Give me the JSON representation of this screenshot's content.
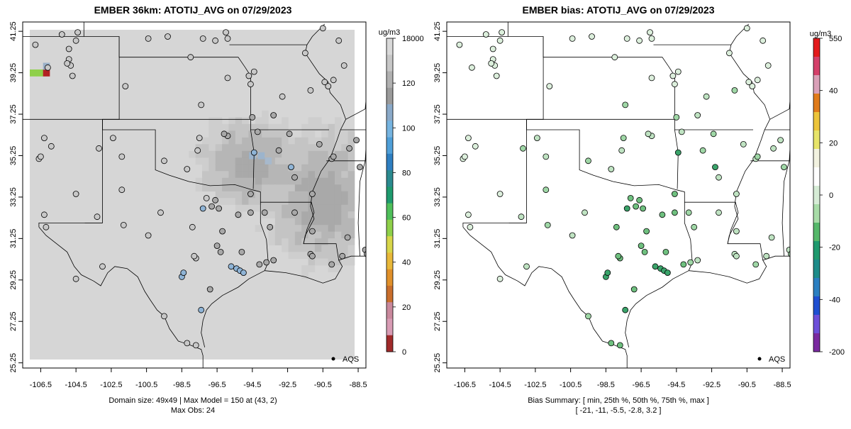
{
  "left": {
    "title": "EMBER 36km: ATOTIJ_AVG on 07/29/2023",
    "footer_line1": "Domain size: 49x49 | Max Model = 150 at (43, 2)",
    "footer_line2": "Max Obs: 24",
    "legend_aqs": "AQS",
    "colorbar_unit": "ug/m3",
    "colorbar_labels": [
      "18000",
      "120",
      "100",
      "80",
      "60",
      "40",
      "20",
      "0"
    ],
    "colorbar_colors": [
      "#d9d9d9",
      "#c7c7c7",
      "#b0b0b0",
      "#9a9a9a",
      "#8aa9c8",
      "#76b4e0",
      "#4f9fd8",
      "#2e7fc1",
      "#2b8a8f",
      "#1f9a6e",
      "#4fbf5a",
      "#8fd04a",
      "#d8d64a",
      "#e8b83a",
      "#e0902a",
      "#c96e2c",
      "#c9889c",
      "#d89bb4",
      "#a02a2a"
    ]
  },
  "right": {
    "title": "EMBER bias: ATOTIJ_AVG on 07/29/2023",
    "footer_line1": "Bias Summary: [ min, 25th %, 50th %, 75th %, max ]",
    "footer_line2": "[ -21,   -11,   -5.5,   -2.8,   3.2 ]",
    "legend_aqs": "AQS",
    "colorbar_unit": "ug/m3",
    "colorbar_labels": [
      "550",
      "40",
      "20",
      "0",
      "-20",
      "-40",
      "-200"
    ],
    "colorbar_colors": [
      "#e31a1c",
      "#d4406a",
      "#d9a0b8",
      "#e07b1a",
      "#ecc43a",
      "#e7e46a",
      "#f2f2e0",
      "#ffffff",
      "#d6ecd6",
      "#a8dca8",
      "#55b86a",
      "#1f9a6e",
      "#1e8c8a",
      "#2b7fc1",
      "#1f4fd1",
      "#6d4fd9",
      "#7a2aa0"
    ]
  },
  "axes": {
    "x_labels": [
      "-106.5",
      "-104.5",
      "-102.5",
      "-100.5",
      "-98.5",
      "-96.5",
      "-94.5",
      "-92.5",
      "-90.5",
      "-88.5"
    ],
    "y_labels": [
      "41.25",
      "39.25",
      "37.25",
      "35.25",
      "33.25",
      "31.25",
      "29.25",
      "27.25",
      "25.25"
    ]
  },
  "stations": [
    [
      -106.8,
      40.6
    ],
    [
      -105.3,
      41.1
    ],
    [
      -104.5,
      40.8
    ],
    [
      -104.9,
      40.4
    ],
    [
      -104.9,
      39.9
    ],
    [
      -104.8,
      39.6
    ],
    [
      -104.7,
      39.1
    ],
    [
      -105.0,
      39.7
    ],
    [
      -106.1,
      39.5
    ],
    [
      -104.4,
      41.2
    ],
    [
      -99.3,
      41.0
    ],
    [
      -100.4,
      40.9
    ],
    [
      -97.3,
      40.9
    ],
    [
      -96.6,
      40.8
    ],
    [
      -96.0,
      41.2
    ],
    [
      -95.9,
      40.9
    ],
    [
      -98.0,
      40.0
    ],
    [
      -101.7,
      38.6
    ],
    [
      -97.4,
      37.7
    ],
    [
      -94.7,
      39.1
    ],
    [
      -94.6,
      38.7
    ],
    [
      -95.9,
      39.0
    ],
    [
      -94.4,
      39.3
    ],
    [
      -91.5,
      40.2
    ],
    [
      -90.5,
      41.4
    ],
    [
      -89.6,
      40.8
    ],
    [
      -90.2,
      38.6
    ],
    [
      -90.4,
      38.8
    ],
    [
      -89.3,
      39.6
    ],
    [
      -89.9,
      38.9
    ],
    [
      -91.2,
      38.4
    ],
    [
      -92.8,
      38.1
    ],
    [
      -93.3,
      37.2
    ],
    [
      -94.5,
      37.1
    ],
    [
      -95.9,
      36.2
    ],
    [
      -96.1,
      36.3
    ],
    [
      -97.5,
      36.1
    ],
    [
      -97.6,
      35.5
    ],
    [
      -98.2,
      34.6
    ],
    [
      -99.5,
      35.0
    ],
    [
      -101.9,
      35.2
    ],
    [
      -102.4,
      36.1
    ],
    [
      -103.2,
      35.6
    ],
    [
      -105.9,
      35.7
    ],
    [
      -106.3,
      36.1
    ],
    [
      -106.6,
      35.1
    ],
    [
      -106.5,
      35.2
    ],
    [
      -104.5,
      33.4
    ],
    [
      -106.3,
      32.4
    ],
    [
      -106.2,
      31.8
    ],
    [
      -103.3,
      32.3
    ],
    [
      -101.9,
      33.6
    ],
    [
      -99.7,
      32.5
    ],
    [
      -97.1,
      33.2
    ],
    [
      -96.8,
      32.8
    ],
    [
      -97.3,
      32.7
    ],
    [
      -96.4,
      32.7
    ],
    [
      -96.6,
      33.1
    ],
    [
      -95.3,
      32.4
    ],
    [
      -94.6,
      32.5
    ],
    [
      -94.6,
      33.4
    ],
    [
      -92.3,
      34.7
    ],
    [
      -92.1,
      34.2
    ],
    [
      -93.0,
      35.5
    ],
    [
      -94.4,
      35.4
    ],
    [
      -94.2,
      36.4
    ],
    [
      -92.4,
      36.3
    ],
    [
      -90.7,
      35.8
    ],
    [
      -90.0,
      35.1
    ],
    [
      -89.9,
      35.2
    ],
    [
      -89.0,
      35.6
    ],
    [
      -88.6,
      36.0
    ],
    [
      -88.4,
      34.7
    ],
    [
      -91.1,
      33.4
    ],
    [
      -92.1,
      32.5
    ],
    [
      -93.8,
      32.5
    ],
    [
      -91.2,
      30.5
    ],
    [
      -91.1,
      30.4
    ],
    [
      -90.0,
      30.0
    ],
    [
      -89.4,
      30.4
    ],
    [
      -88.1,
      30.7
    ],
    [
      -88.0,
      30.5
    ],
    [
      -89.1,
      31.3
    ],
    [
      -93.3,
      30.2
    ],
    [
      -93.7,
      30.1
    ],
    [
      -94.1,
      30.0
    ],
    [
      -95.4,
      29.8
    ],
    [
      -95.2,
      29.7
    ],
    [
      -95.0,
      29.6
    ],
    [
      -95.7,
      29.9
    ],
    [
      -96.9,
      28.8
    ],
    [
      -97.4,
      27.8
    ],
    [
      -97.7,
      26.1
    ],
    [
      -98.5,
      29.4
    ],
    [
      -98.4,
      29.6
    ],
    [
      -97.7,
      30.3
    ],
    [
      -97.8,
      30.4
    ],
    [
      -96.3,
      30.6
    ],
    [
      -100.4,
      31.4
    ],
    [
      -101.8,
      31.9
    ],
    [
      -104.5,
      29.3
    ],
    [
      -103.0,
      29.9
    ],
    [
      -99.5,
      27.5
    ],
    [
      -98.2,
      26.2
    ],
    [
      -97.9,
      31.8
    ],
    [
      -96.5,
      30.9
    ],
    [
      -96.2,
      31.6
    ],
    [
      -95.1,
      30.6
    ],
    [
      -93.5,
      31.8
    ],
    [
      -91.1,
      31.6
    ]
  ]
}
